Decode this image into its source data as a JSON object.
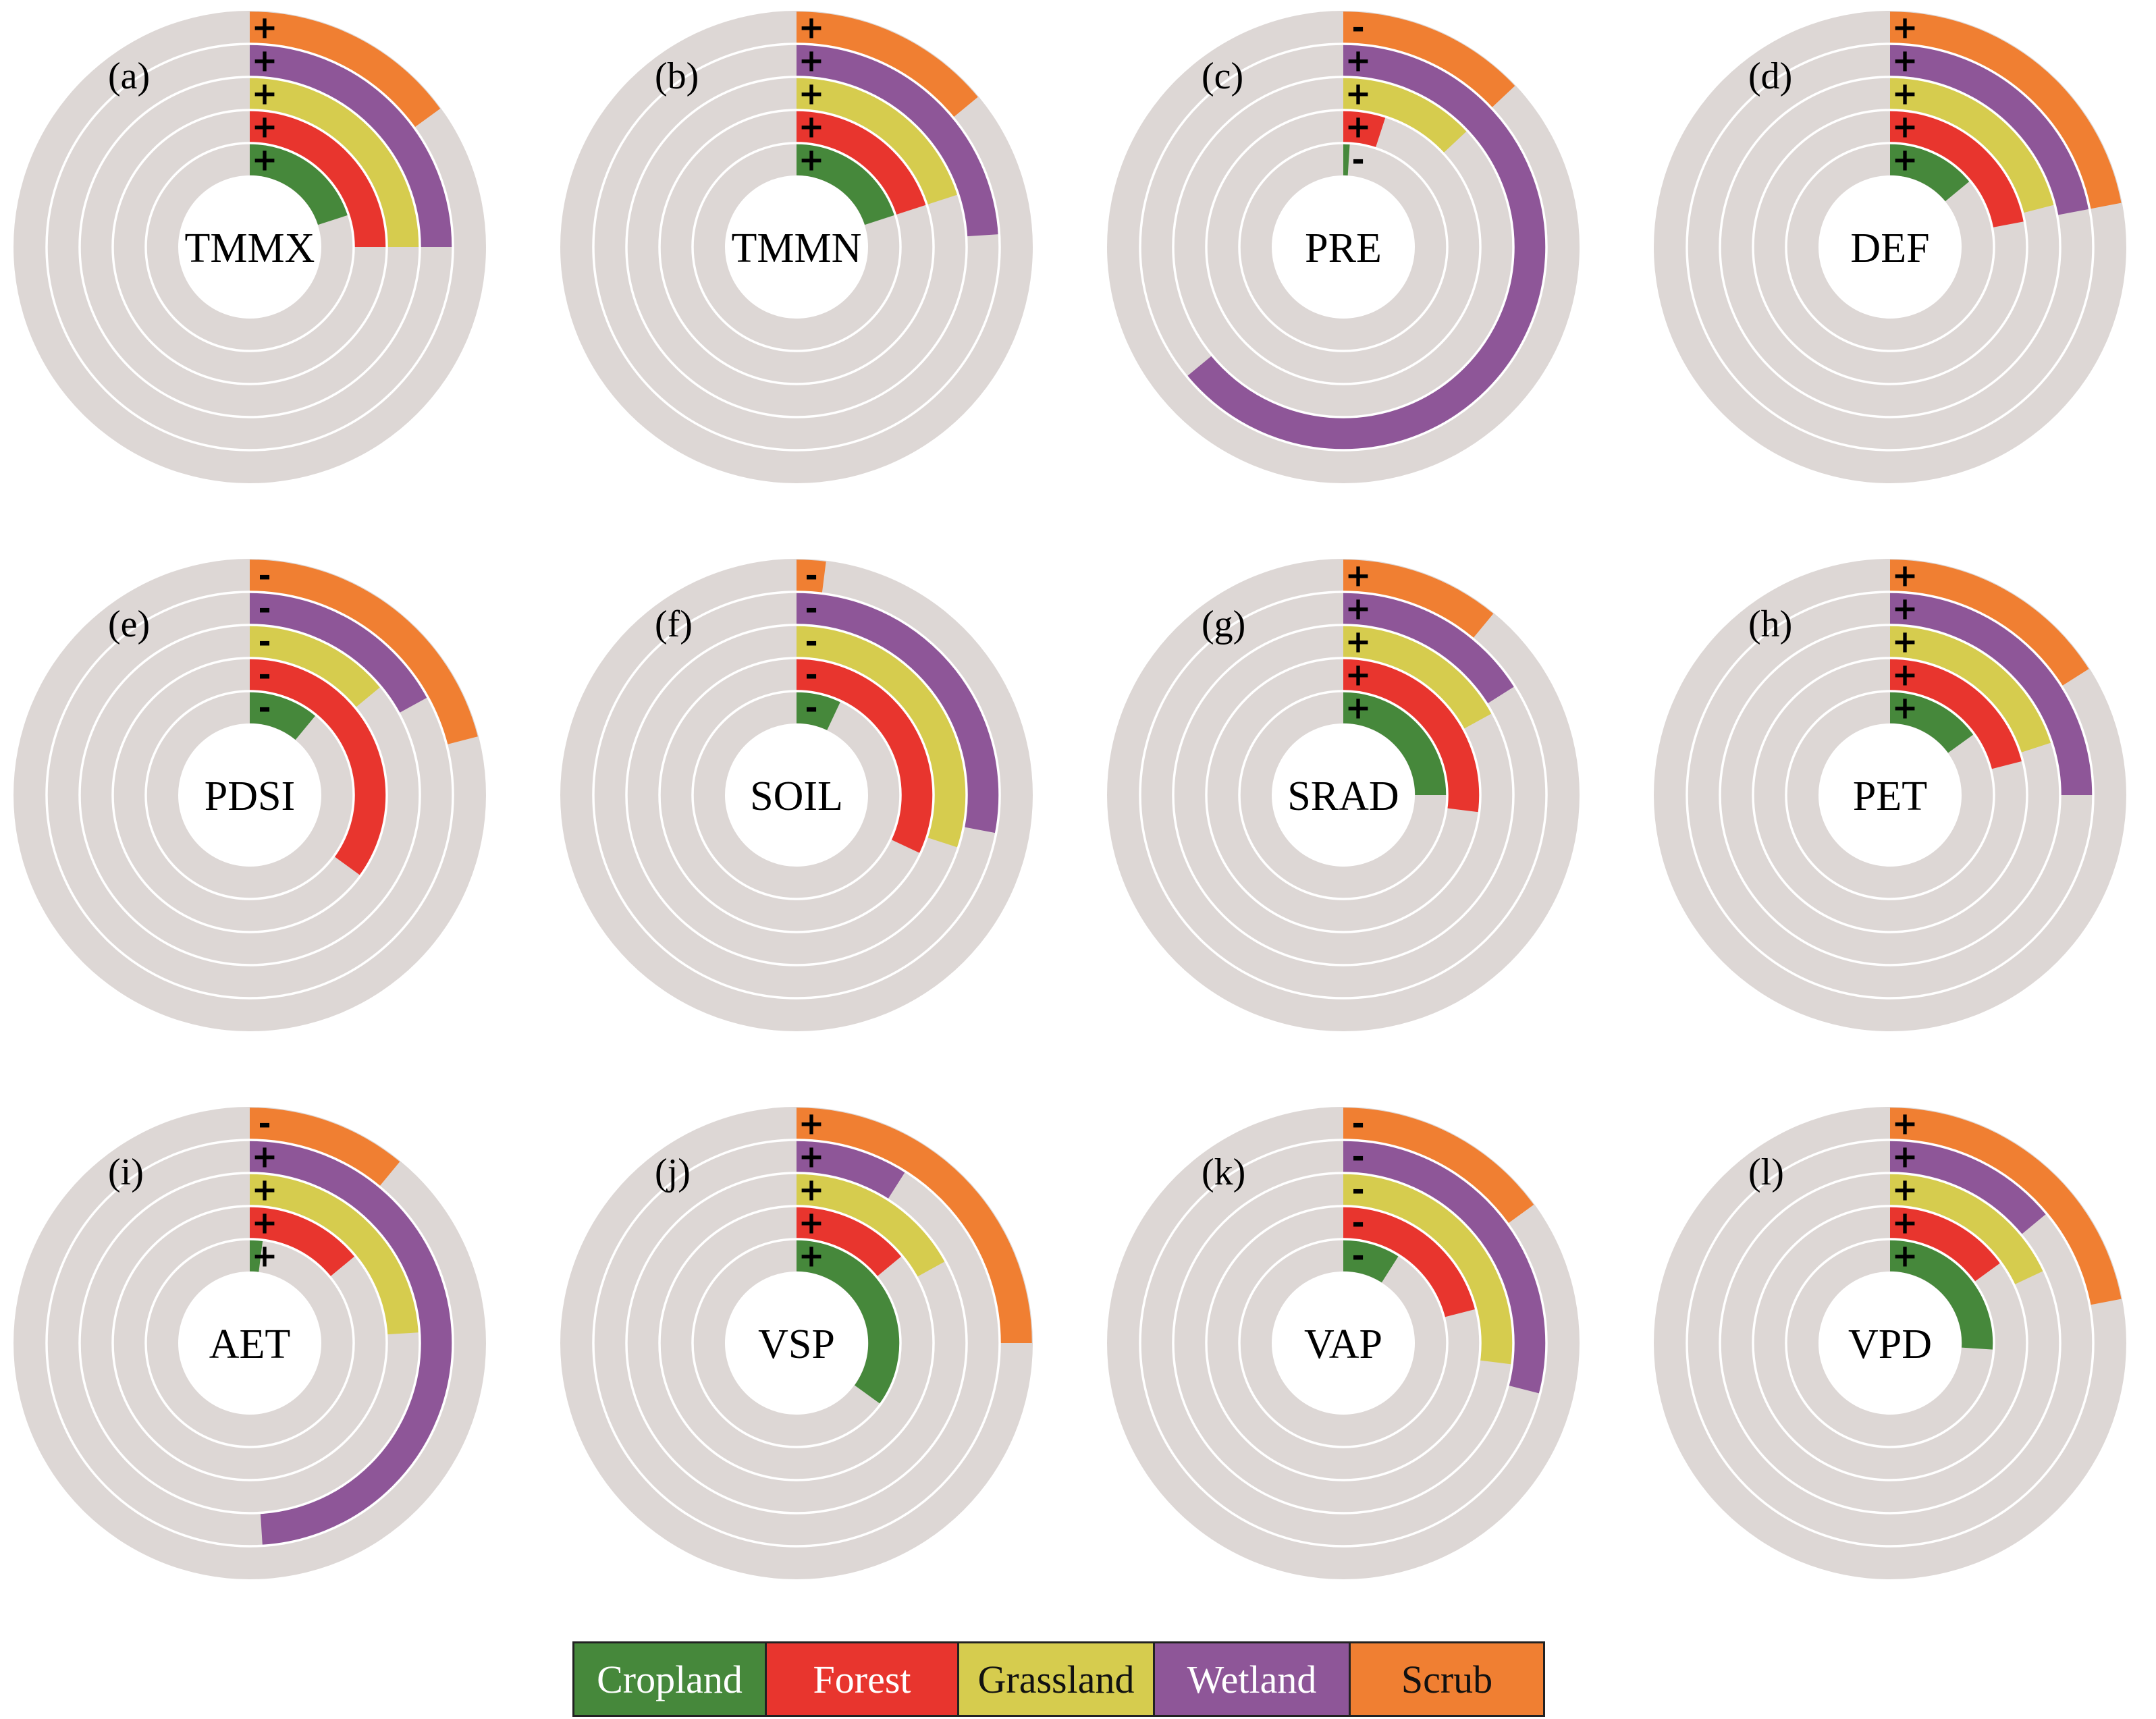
{
  "chart_data": {
    "type": "radial_bar",
    "series_names": [
      "Cropland",
      "Forest",
      "Grassland",
      "Wetland",
      "Scrub"
    ],
    "colors": {
      "Cropland": "#46883b",
      "Forest": "#e8352e",
      "Grassland": "#d6cc4e",
      "Wetland": "#8e5698",
      "Scrub": "#f07f32",
      "track": "#ddd7d5"
    },
    "value_unit": "fraction of full circle",
    "panels": [
      {
        "label": "(a)",
        "center": "TMMX",
        "values": [
          0.2,
          0.25,
          0.25,
          0.25,
          0.15
        ],
        "signs": [
          "+",
          "+",
          "+",
          "+",
          "+"
        ]
      },
      {
        "label": "(b)",
        "center": "TMMN",
        "values": [
          0.2,
          0.2,
          0.2,
          0.24,
          0.14
        ],
        "signs": [
          "+",
          "+",
          "+",
          "+",
          "+"
        ]
      },
      {
        "label": "(c)",
        "center": "PRE",
        "values": [
          0.01,
          0.05,
          0.13,
          0.64,
          0.13
        ],
        "signs": [
          "-",
          "+",
          "+",
          "+",
          "-"
        ]
      },
      {
        "label": "(d)",
        "center": "DEF",
        "values": [
          0.14,
          0.22,
          0.21,
          0.22,
          0.22
        ],
        "signs": [
          "+",
          "+",
          "+",
          "+",
          "+"
        ]
      },
      {
        "label": "(e)",
        "center": "PDSI",
        "values": [
          0.11,
          0.35,
          0.14,
          0.17,
          0.21
        ],
        "signs": [
          "-",
          "-",
          "-",
          "-",
          "-"
        ]
      },
      {
        "label": "(f)",
        "center": "SOIL",
        "values": [
          0.07,
          0.32,
          0.3,
          0.28,
          0.02
        ],
        "signs": [
          "-",
          "-",
          "-",
          "-",
          "-"
        ]
      },
      {
        "label": "(g)",
        "center": "SRAD",
        "values": [
          0.25,
          0.27,
          0.17,
          0.16,
          0.11
        ],
        "signs": [
          "+",
          "+",
          "+",
          "+",
          "+"
        ]
      },
      {
        "label": "(h)",
        "center": "PET",
        "values": [
          0.15,
          0.21,
          0.2,
          0.25,
          0.16
        ],
        "signs": [
          "+",
          "+",
          "+",
          "+",
          "+"
        ]
      },
      {
        "label": "(i)",
        "center": "AET",
        "values": [
          0.02,
          0.14,
          0.24,
          0.49,
          0.11
        ],
        "signs": [
          "+",
          "+",
          "+",
          "+",
          "-"
        ]
      },
      {
        "label": "(j)",
        "center": "VSP",
        "values": [
          0.35,
          0.14,
          0.17,
          0.09,
          0.25
        ],
        "signs": [
          "+",
          "+",
          "+",
          "+",
          "+"
        ]
      },
      {
        "label": "(k)",
        "center": "VAP",
        "values": [
          0.09,
          0.21,
          0.27,
          0.29,
          0.15
        ],
        "signs": [
          "-",
          "-",
          "-",
          "-",
          "-"
        ]
      },
      {
        "label": "(l)",
        "center": "VPD",
        "values": [
          0.26,
          0.15,
          0.18,
          0.14,
          0.22
        ],
        "signs": [
          "+",
          "+",
          "+",
          "+",
          "+"
        ]
      }
    ],
    "legend": [
      "Cropland",
      "Forest",
      "Grassland",
      "Wetland",
      "Scrub"
    ],
    "legend_placement": "bottom-center"
  }
}
